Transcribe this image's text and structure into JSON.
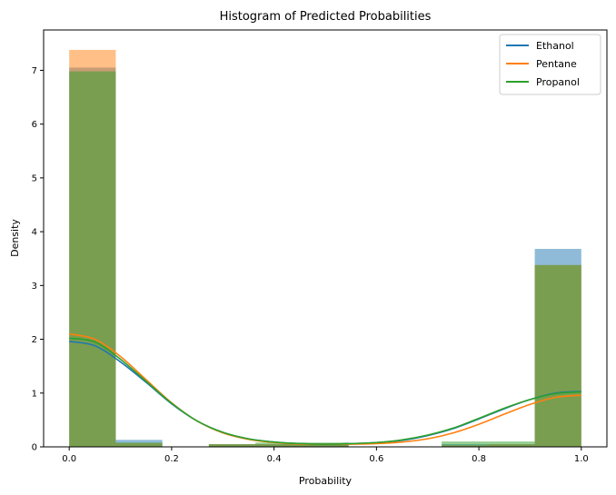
{
  "chart_data": {
    "type": "histogram",
    "title": "Histogram of Predicted Probabilities",
    "xlabel": "Probability",
    "ylabel": "Density",
    "xlim": [
      -0.05,
      1.05
    ],
    "ylim": [
      0,
      7.75
    ],
    "xticks": [
      "0.0",
      "0.2",
      "0.4",
      "0.6",
      "0.8",
      "1.0"
    ],
    "yticks": [
      "0",
      "1",
      "2",
      "3",
      "4",
      "5",
      "6",
      "7"
    ],
    "grid": false,
    "legend_position": "top-right",
    "bin_edges": [
      0.0,
      0.0909,
      0.1818,
      0.2727,
      0.3636,
      0.4545,
      0.5455,
      0.6364,
      0.7273,
      0.8182,
      0.9091,
      1.0
    ],
    "series": [
      {
        "name": "Ethanol",
        "color": "#1f77b4",
        "densities": [
          7.05,
          0.13,
          0.0,
          0.05,
          0.05,
          0.05,
          0.0,
          0.0,
          0.05,
          0.05,
          3.68
        ],
        "kde": {
          "x": [
            0.0,
            0.05,
            0.1,
            0.15,
            0.2,
            0.25,
            0.3,
            0.35,
            0.4,
            0.45,
            0.5,
            0.55,
            0.6,
            0.65,
            0.7,
            0.75,
            0.8,
            0.85,
            0.9,
            0.95,
            1.0
          ],
          "y": [
            1.96,
            1.88,
            1.58,
            1.2,
            0.8,
            0.48,
            0.27,
            0.15,
            0.09,
            0.06,
            0.05,
            0.06,
            0.08,
            0.12,
            0.21,
            0.34,
            0.52,
            0.71,
            0.88,
            1.0,
            1.03
          ]
        }
      },
      {
        "name": "Pentane",
        "color": "#ff7f0e",
        "densities": [
          7.38,
          0.07,
          0.0,
          0.05,
          0.05,
          0.05,
          0.0,
          0.0,
          0.03,
          0.05,
          3.38
        ],
        "kde": {
          "x": [
            0.0,
            0.05,
            0.1,
            0.15,
            0.2,
            0.25,
            0.3,
            0.35,
            0.4,
            0.45,
            0.5,
            0.55,
            0.6,
            0.65,
            0.7,
            0.75,
            0.8,
            0.85,
            0.9,
            0.95,
            1.0
          ],
          "y": [
            2.1,
            2.0,
            1.68,
            1.25,
            0.82,
            0.48,
            0.26,
            0.14,
            0.08,
            0.05,
            0.05,
            0.05,
            0.06,
            0.09,
            0.15,
            0.26,
            0.42,
            0.61,
            0.79,
            0.92,
            0.96
          ]
        }
      },
      {
        "name": "Propanol",
        "color": "#2ca02c",
        "densities": [
          6.98,
          0.08,
          0.0,
          0.05,
          0.08,
          0.08,
          0.0,
          0.0,
          0.1,
          0.1,
          3.38
        ],
        "kde": {
          "x": [
            0.0,
            0.05,
            0.1,
            0.15,
            0.2,
            0.25,
            0.3,
            0.35,
            0.4,
            0.45,
            0.5,
            0.55,
            0.6,
            0.65,
            0.7,
            0.75,
            0.8,
            0.85,
            0.9,
            0.95,
            1.0
          ],
          "y": [
            2.02,
            1.95,
            1.63,
            1.22,
            0.81,
            0.48,
            0.27,
            0.15,
            0.09,
            0.06,
            0.05,
            0.06,
            0.08,
            0.13,
            0.22,
            0.35,
            0.53,
            0.72,
            0.88,
            0.99,
            1.02
          ]
        }
      }
    ]
  }
}
